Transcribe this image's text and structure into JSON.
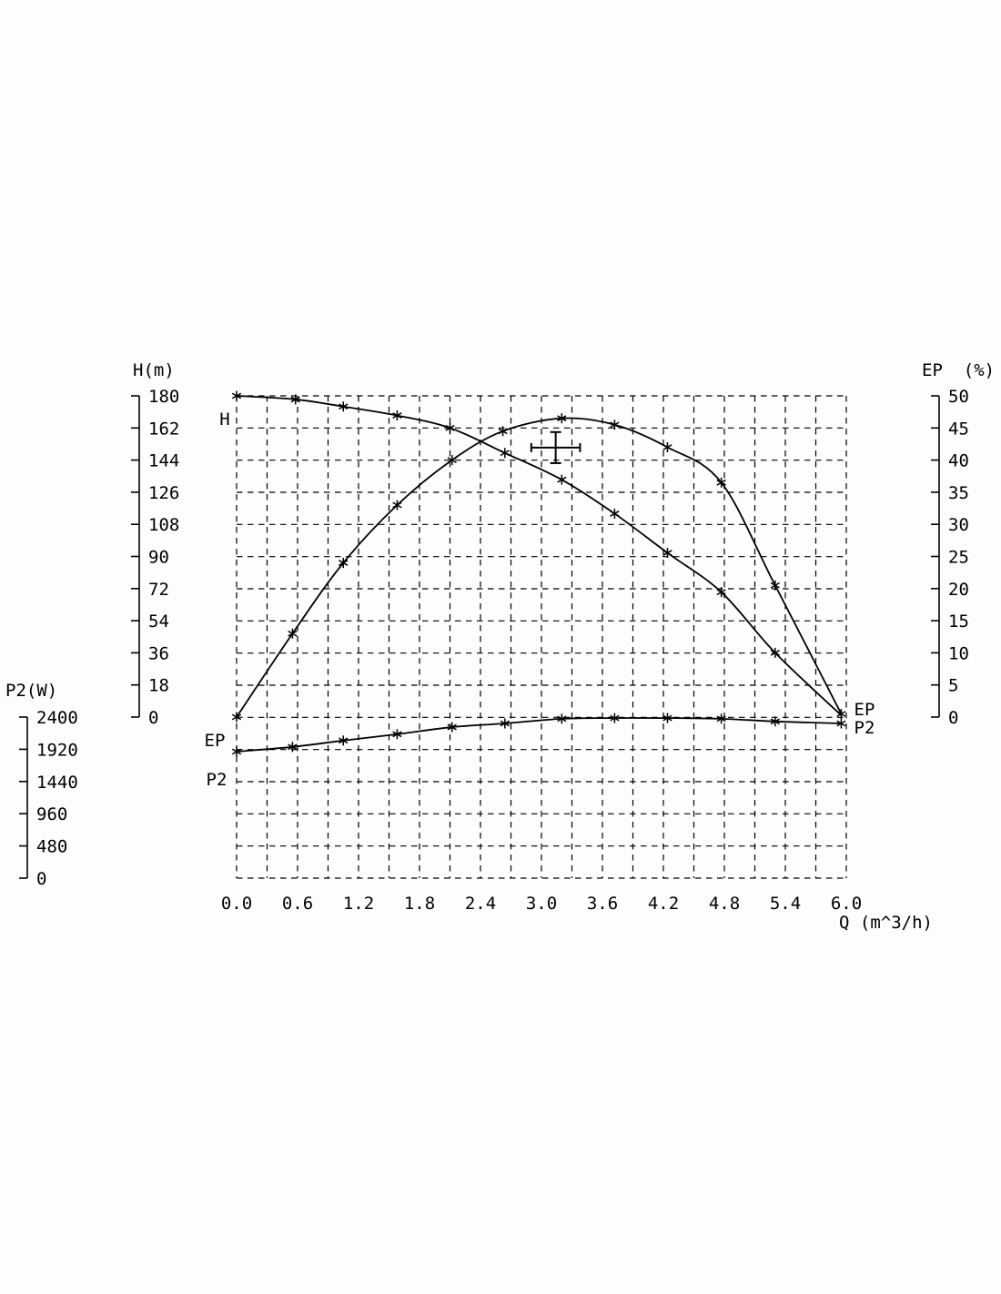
{
  "page": {
    "background": "#fdfdfd",
    "line_color": "#000000"
  },
  "chart_data": {
    "type": "line",
    "title": "",
    "x_axis": {
      "title": "Q (m^3/h)",
      "range": [
        0,
        6
      ],
      "ticks": [
        "0.0",
        "0.6",
        "1.2",
        "1.8",
        "2.4",
        "3.0",
        "3.6",
        "4.2",
        "4.8",
        "5.4",
        "6.0"
      ],
      "grid_step": 0.3
    },
    "y_axes": [
      {
        "id": "H",
        "title": "H(m)",
        "side": "left",
        "range": [
          0,
          180
        ],
        "ticks": [
          180,
          162,
          144,
          126,
          108,
          90,
          72,
          54,
          36,
          18,
          0
        ]
      },
      {
        "id": "EP",
        "title": "EP  (%)",
        "side": "right",
        "range": [
          0,
          50
        ],
        "ticks": [
          50,
          45,
          40,
          35,
          30,
          25,
          20,
          15,
          10,
          5,
          0
        ]
      },
      {
        "id": "P2",
        "title": "P2(W)",
        "side": "far-left-lower",
        "range": [
          0,
          2400
        ],
        "ticks": [
          2400,
          1920,
          1440,
          960,
          480,
          0
        ]
      }
    ],
    "grid": {
      "style": "dashed",
      "color": "#000000"
    },
    "series": [
      {
        "name": "H",
        "axis": "H",
        "marker": "asterisk",
        "end_marker": false,
        "points": [
          [
            0,
            180
          ],
          [
            0.58,
            178
          ],
          [
            1.05,
            174
          ],
          [
            1.58,
            169
          ],
          [
            2.1,
            162
          ],
          [
            2.64,
            148
          ],
          [
            3.2,
            133
          ],
          [
            3.72,
            114
          ],
          [
            4.24,
            92
          ],
          [
            4.77,
            70
          ],
          [
            5.3,
            36
          ],
          [
            5.95,
            1
          ]
        ]
      },
      {
        "name": "EP",
        "axis": "EP",
        "marker": "asterisk",
        "end_marker": true,
        "points": [
          [
            0,
            0
          ],
          [
            0.55,
            13
          ],
          [
            1.05,
            24
          ],
          [
            1.58,
            33
          ],
          [
            2.12,
            40
          ],
          [
            2.62,
            44.5
          ],
          [
            3.2,
            46.5
          ],
          [
            3.72,
            45.5
          ],
          [
            4.24,
            42
          ],
          [
            4.77,
            36.5
          ],
          [
            5.3,
            20.5
          ],
          [
            5.95,
            0.5
          ]
        ]
      },
      {
        "name": "P2",
        "axis": "P2",
        "marker": "asterisk",
        "end_marker": true,
        "points": [
          [
            0,
            1885
          ],
          [
            0.55,
            1955
          ],
          [
            1.05,
            2050
          ],
          [
            1.58,
            2145
          ],
          [
            2.12,
            2250
          ],
          [
            2.64,
            2305
          ],
          [
            3.2,
            2375
          ],
          [
            3.72,
            2385
          ],
          [
            4.24,
            2385
          ],
          [
            4.77,
            2375
          ],
          [
            5.3,
            2335
          ],
          [
            5.95,
            2305
          ]
        ]
      }
    ],
    "curve_labels": {
      "h_start": "H",
      "ep_start": "EP",
      "p2_start": "P2",
      "ep_end": "EP",
      "p2_end": "P2"
    },
    "duty_point": {
      "q": 3.14,
      "h": 151,
      "q_halfspan": 0.24,
      "h_halfspan": 8.7
    }
  }
}
